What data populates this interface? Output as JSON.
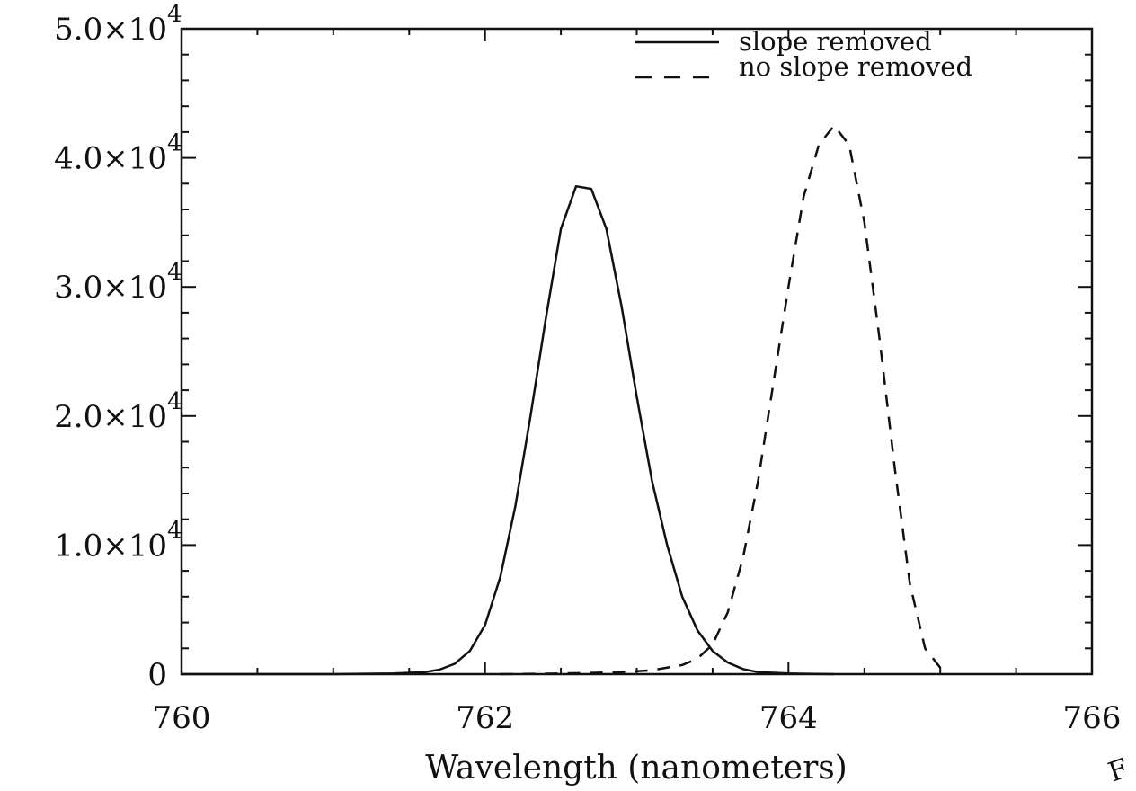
{
  "chart_data": {
    "type": "line",
    "title": "",
    "xlabel": "Wavelength (nanometers)",
    "ylabel": "",
    "xlim": [
      760,
      766
    ],
    "ylim": [
      0,
      50000
    ],
    "x_ticks": [
      {
        "value": 760,
        "label": "760"
      },
      {
        "value": 762,
        "label": "762"
      },
      {
        "value": 764,
        "label": "764"
      },
      {
        "value": 766,
        "label": "766"
      }
    ],
    "y_ticks": [
      {
        "value": 0,
        "mantissa": "0",
        "exponent": ""
      },
      {
        "value": 10000,
        "mantissa": "1.0×10",
        "exponent": "4"
      },
      {
        "value": 20000,
        "mantissa": "2.0×10",
        "exponent": "4"
      },
      {
        "value": 30000,
        "mantissa": "3.0×10",
        "exponent": "4"
      },
      {
        "value": 40000,
        "mantissa": "4.0×10",
        "exponent": "4"
      },
      {
        "value": 50000,
        "mantissa": "5.0×10",
        "exponent": "4"
      }
    ],
    "grid": false,
    "legend_position": "top-right",
    "series": [
      {
        "name": "slope removed",
        "style": "solid",
        "points": [
          [
            760.0,
            0
          ],
          [
            761.0,
            0
          ],
          [
            761.4,
            50
          ],
          [
            761.6,
            150
          ],
          [
            761.7,
            350
          ],
          [
            761.8,
            800
          ],
          [
            761.9,
            1800
          ],
          [
            762.0,
            3800
          ],
          [
            762.1,
            7500
          ],
          [
            762.2,
            13000
          ],
          [
            762.3,
            20000
          ],
          [
            762.4,
            27500
          ],
          [
            762.5,
            34500
          ],
          [
            762.6,
            37800
          ],
          [
            762.7,
            37600
          ],
          [
            762.8,
            34500
          ],
          [
            762.9,
            28500
          ],
          [
            763.0,
            21500
          ],
          [
            763.1,
            15000
          ],
          [
            763.2,
            10000
          ],
          [
            763.3,
            6000
          ],
          [
            763.4,
            3400
          ],
          [
            763.5,
            1800
          ],
          [
            763.6,
            900
          ],
          [
            763.7,
            400
          ],
          [
            763.8,
            150
          ],
          [
            764.0,
            50
          ],
          [
            764.3,
            0
          ]
        ]
      },
      {
        "name": "no slope removed",
        "style": "dashed",
        "points": [
          [
            762.1,
            0
          ],
          [
            762.5,
            50
          ],
          [
            762.9,
            150
          ],
          [
            763.1,
            300
          ],
          [
            763.3,
            700
          ],
          [
            763.4,
            1200
          ],
          [
            763.5,
            2300
          ],
          [
            763.6,
            4800
          ],
          [
            763.7,
            9000
          ],
          [
            763.8,
            15000
          ],
          [
            763.9,
            22500
          ],
          [
            764.0,
            30000
          ],
          [
            764.1,
            37000
          ],
          [
            764.2,
            41000
          ],
          [
            764.3,
            42500
          ],
          [
            764.4,
            41000
          ],
          [
            764.5,
            35000
          ],
          [
            764.6,
            26000
          ],
          [
            764.7,
            16000
          ],
          [
            764.8,
            7000
          ],
          [
            764.9,
            2000
          ],
          [
            765.0,
            500
          ],
          [
            765.05,
            0
          ]
        ]
      }
    ]
  },
  "margin_mark": "F"
}
